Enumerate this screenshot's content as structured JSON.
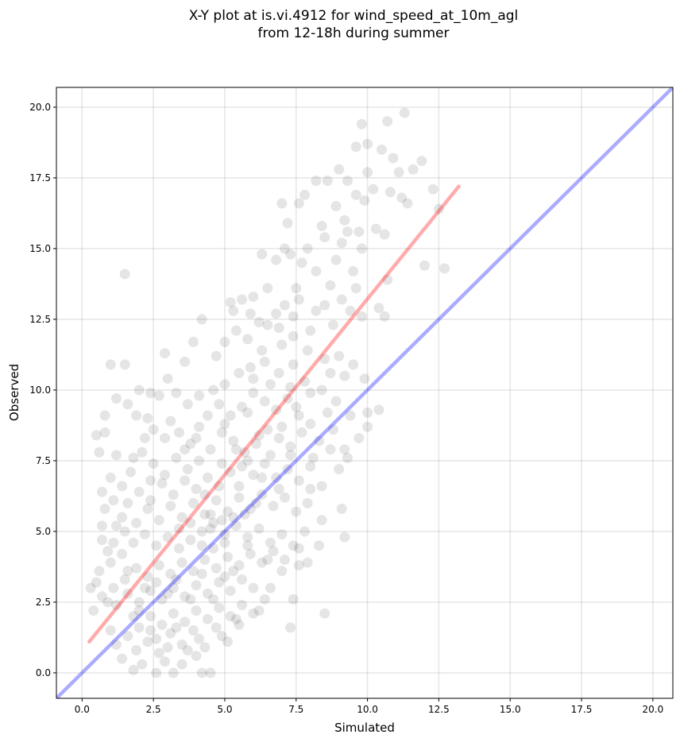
{
  "chart_data": {
    "type": "scatter",
    "title": "X-Y plot at is.vi.4912 for wind_speed_at_10m_agl",
    "subtitle": "from 12-18h during summer",
    "xlabel": "Simulated",
    "ylabel": "Observed",
    "xlim": [
      -0.9,
      20.7
    ],
    "ylim": [
      -0.9,
      20.7
    ],
    "grid": true,
    "xticks": [
      "0.0",
      "2.5",
      "5.0",
      "7.5",
      "10.0",
      "12.5",
      "15.0",
      "17.5",
      "20.0"
    ],
    "yticks": [
      "0.0",
      "2.5",
      "5.0",
      "7.5",
      "10.0",
      "12.5",
      "15.0",
      "17.5",
      "20.0"
    ],
    "tick_values": [
      0,
      2.5,
      5,
      7.5,
      10,
      12.5,
      15,
      17.5,
      20
    ],
    "point_color": "#000000",
    "point_alpha": 0.1,
    "lines": [
      {
        "kind": "regression",
        "color": "#ff0000",
        "alpha": 0.33,
        "x": [
          0.25,
          13.2
        ],
        "y": [
          1.1,
          17.2
        ]
      },
      {
        "kind": "one-to-one",
        "color": "#0000ff",
        "alpha": 0.33,
        "x": [
          -0.9,
          20.7
        ],
        "y": [
          -0.9,
          20.7
        ]
      }
    ],
    "points": [
      [
        1.5,
        14.1
      ],
      [
        2.4,
        9.9
      ],
      [
        1.0,
        10.9
      ],
      [
        1.5,
        10.9
      ],
      [
        0.8,
        9.1
      ],
      [
        1.2,
        9.7
      ],
      [
        1.6,
        9.5
      ],
      [
        2.0,
        10.0
      ],
      [
        0.5,
        8.4
      ],
      [
        0.8,
        8.5
      ],
      [
        0.6,
        7.8
      ],
      [
        0.7,
        6.4
      ],
      [
        1.2,
        7.7
      ],
      [
        1.8,
        7.6
      ],
      [
        0.3,
        3.0
      ],
      [
        0.4,
        2.2
      ],
      [
        0.5,
        3.2
      ],
      [
        0.9,
        4.3
      ],
      [
        0.7,
        5.2
      ],
      [
        1.1,
        6.1
      ],
      [
        1.4,
        5.5
      ],
      [
        1.6,
        3.6
      ],
      [
        2.0,
        2.2
      ],
      [
        2.6,
        0.0
      ],
      [
        3.2,
        0.0
      ],
      [
        4.2,
        0.0
      ],
      [
        4.5,
        0.0
      ],
      [
        3.0,
        0.9
      ],
      [
        3.7,
        0.8
      ],
      [
        2.4,
        1.5
      ],
      [
        3.3,
        1.6
      ],
      [
        4.1,
        1.2
      ],
      [
        4.9,
        1.3
      ],
      [
        5.4,
        1.9
      ],
      [
        6.2,
        2.2
      ],
      [
        7.3,
        1.6
      ],
      [
        7.4,
        2.6
      ],
      [
        8.5,
        2.1
      ],
      [
        6.6,
        3.0
      ],
      [
        7.0,
        3.6
      ],
      [
        7.6,
        3.8
      ],
      [
        7.9,
        3.9
      ],
      [
        8.3,
        4.5
      ],
      [
        7.8,
        5.0
      ],
      [
        9.2,
        4.8
      ],
      [
        9.1,
        5.8
      ],
      [
        8.4,
        5.4
      ],
      [
        8.0,
        6.5
      ],
      [
        8.4,
        6.6
      ],
      [
        9.0,
        7.2
      ],
      [
        9.3,
        7.6
      ],
      [
        9.7,
        8.3
      ],
      [
        10.0,
        8.7
      ],
      [
        10.4,
        9.3
      ],
      [
        9.2,
        7.9
      ],
      [
        8.8,
        8.6
      ],
      [
        12.7,
        14.3
      ],
      [
        10.7,
        13.9
      ],
      [
        11.2,
        16.8
      ],
      [
        11.6,
        17.8
      ],
      [
        11.3,
        19.8
      ],
      [
        10.7,
        19.5
      ],
      [
        10.0,
        18.7
      ],
      [
        10.5,
        18.5
      ],
      [
        9.8,
        19.4
      ],
      [
        9.6,
        18.6
      ],
      [
        12.0,
        14.4
      ],
      [
        12.3,
        17.1
      ],
      [
        12.5,
        16.4
      ],
      [
        11.4,
        16.6
      ],
      [
        10.8,
        17.0
      ],
      [
        11.9,
        18.1
      ],
      [
        10.6,
        15.5
      ],
      [
        10.3,
        15.7
      ],
      [
        9.7,
        15.6
      ],
      [
        9.1,
        15.2
      ],
      [
        8.5,
        15.4
      ],
      [
        7.9,
        15.0
      ],
      [
        7.3,
        14.8
      ],
      [
        6.8,
        14.6
      ],
      [
        6.3,
        14.8
      ],
      [
        7.0,
        16.6
      ],
      [
        7.2,
        15.9
      ],
      [
        7.6,
        16.6
      ],
      [
        7.8,
        16.9
      ],
      [
        8.2,
        17.4
      ],
      [
        8.6,
        17.4
      ],
      [
        8.9,
        16.5
      ],
      [
        9.2,
        16.0
      ],
      [
        9.6,
        16.9
      ],
      [
        9.0,
        17.8
      ],
      [
        9.3,
        17.4
      ],
      [
        9.9,
        16.7
      ],
      [
        10.2,
        17.1
      ],
      [
        10.0,
        17.7
      ],
      [
        10.9,
        18.2
      ],
      [
        11.1,
        17.7
      ],
      [
        9.5,
        14.2
      ],
      [
        9.4,
        12.8
      ],
      [
        10.4,
        12.9
      ],
      [
        10.6,
        12.6
      ],
      [
        9.8,
        12.6
      ],
      [
        8.8,
        12.3
      ],
      [
        8.2,
        12.8
      ],
      [
        7.6,
        13.2
      ],
      [
        7.1,
        13.0
      ],
      [
        6.5,
        13.6
      ],
      [
        6.0,
        13.3
      ],
      [
        5.6,
        13.2
      ],
      [
        5.2,
        13.1
      ],
      [
        5.4,
        12.1
      ],
      [
        5.8,
        11.8
      ],
      [
        6.3,
        11.4
      ],
      [
        6.9,
        12.2
      ],
      [
        7.4,
        11.9
      ],
      [
        7.9,
        11.4
      ],
      [
        8.5,
        11.1
      ],
      [
        9.0,
        11.2
      ],
      [
        9.5,
        10.9
      ],
      [
        9.9,
        10.4
      ],
      [
        10.0,
        9.2
      ],
      [
        9.4,
        9.1
      ],
      [
        8.9,
        9.6
      ],
      [
        8.4,
        10.0
      ],
      [
        7.8,
        10.3
      ],
      [
        7.3,
        10.1
      ],
      [
        6.9,
        10.6
      ],
      [
        6.4,
        11.0
      ],
      [
        5.9,
        10.8
      ],
      [
        5.5,
        10.6
      ],
      [
        5.0,
        10.2
      ],
      [
        4.6,
        10.0
      ],
      [
        4.1,
        9.8
      ],
      [
        3.7,
        9.5
      ],
      [
        3.3,
        9.9
      ],
      [
        3.0,
        10.4
      ],
      [
        2.9,
        11.3
      ],
      [
        3.6,
        11.0
      ],
      [
        3.9,
        11.7
      ],
      [
        4.2,
        12.5
      ],
      [
        4.7,
        11.2
      ],
      [
        5.0,
        11.7
      ],
      [
        5.3,
        12.8
      ],
      [
        5.9,
        12.7
      ],
      [
        6.5,
        12.3
      ],
      [
        1.9,
        9.1
      ],
      [
        2.3,
        9.0
      ],
      [
        2.7,
        9.8
      ],
      [
        2.2,
        8.3
      ],
      [
        2.5,
        8.6
      ],
      [
        2.9,
        8.3
      ],
      [
        3.1,
        8.9
      ],
      [
        3.4,
        8.5
      ],
      [
        3.8,
        8.1
      ],
      [
        4.1,
        8.7
      ],
      [
        4.4,
        9.1
      ],
      [
        4.8,
        9.5
      ],
      [
        5.2,
        9.1
      ],
      [
        5.6,
        9.4
      ],
      [
        6.0,
        9.9
      ],
      [
        6.4,
        9.6
      ],
      [
        6.8,
        9.3
      ],
      [
        7.2,
        9.7
      ],
      [
        7.6,
        9.1
      ],
      [
        8.0,
        8.8
      ],
      [
        8.3,
        8.2
      ],
      [
        7.7,
        8.5
      ],
      [
        7.3,
        8.0
      ],
      [
        6.9,
        8.3
      ],
      [
        6.5,
        8.6
      ],
      [
        6.1,
        8.1
      ],
      [
        5.7,
        7.8
      ],
      [
        5.3,
        8.2
      ],
      [
        4.9,
        8.5
      ],
      [
        4.5,
        7.9
      ],
      [
        4.1,
        7.5
      ],
      [
        3.7,
        7.2
      ],
      [
        3.3,
        7.6
      ],
      [
        2.9,
        7.0
      ],
      [
        2.5,
        7.4
      ],
      [
        2.1,
        7.8
      ],
      [
        1.7,
        7.1
      ],
      [
        1.4,
        6.6
      ],
      [
        1.0,
        6.9
      ],
      [
        0.8,
        5.8
      ],
      [
        1.2,
        5.2
      ],
      [
        1.6,
        6.0
      ],
      [
        2.0,
        6.4
      ],
      [
        2.4,
        6.1
      ],
      [
        2.8,
        6.7
      ],
      [
        3.2,
        6.3
      ],
      [
        3.6,
        6.8
      ],
      [
        4.0,
        6.5
      ],
      [
        4.4,
        6.9
      ],
      [
        4.8,
        6.6
      ],
      [
        5.2,
        7.1
      ],
      [
        5.6,
        7.3
      ],
      [
        6.0,
        7.0
      ],
      [
        6.4,
        7.4
      ],
      [
        6.8,
        6.9
      ],
      [
        7.2,
        7.2
      ],
      [
        7.6,
        6.8
      ],
      [
        8.0,
        7.3
      ],
      [
        7.9,
        6.0
      ],
      [
        7.5,
        5.7
      ],
      [
        7.1,
        6.2
      ],
      [
        6.7,
        5.9
      ],
      [
        6.3,
        6.3
      ],
      [
        5.9,
        5.8
      ],
      [
        5.5,
        6.2
      ],
      [
        5.1,
        5.7
      ],
      [
        4.7,
        6.1
      ],
      [
        4.3,
        5.6
      ],
      [
        3.9,
        6.0
      ],
      [
        3.5,
        5.5
      ],
      [
        3.1,
        5.9
      ],
      [
        2.7,
        5.4
      ],
      [
        2.3,
        5.8
      ],
      [
        1.9,
        5.3
      ],
      [
        1.5,
        5.0
      ],
      [
        1.1,
        4.6
      ],
      [
        0.7,
        4.7
      ],
      [
        0.6,
        3.6
      ],
      [
        1.0,
        3.9
      ],
      [
        1.4,
        4.2
      ],
      [
        1.8,
        4.6
      ],
      [
        2.2,
        4.9
      ],
      [
        2.6,
        4.5
      ],
      [
        3.0,
        4.8
      ],
      [
        3.4,
        5.1
      ],
      [
        3.8,
        4.7
      ],
      [
        4.2,
        5.0
      ],
      [
        4.6,
        5.3
      ],
      [
        5.0,
        4.9
      ],
      [
        5.4,
        5.2
      ],
      [
        5.8,
        4.8
      ],
      [
        6.2,
        5.1
      ],
      [
        6.6,
        4.6
      ],
      [
        7.0,
        4.9
      ],
      [
        7.4,
        4.5
      ],
      [
        7.1,
        4.0
      ],
      [
        6.7,
        4.3
      ],
      [
        6.3,
        3.9
      ],
      [
        5.9,
        4.2
      ],
      [
        5.5,
        3.8
      ],
      [
        5.1,
        4.1
      ],
      [
        4.7,
        3.7
      ],
      [
        4.3,
        4.0
      ],
      [
        3.9,
        3.6
      ],
      [
        3.5,
        3.9
      ],
      [
        3.1,
        3.5
      ],
      [
        2.7,
        3.8
      ],
      [
        2.3,
        3.4
      ],
      [
        1.9,
        3.7
      ],
      [
        1.5,
        3.3
      ],
      [
        1.1,
        3.0
      ],
      [
        0.7,
        2.7
      ],
      [
        1.2,
        2.4
      ],
      [
        1.6,
        2.8
      ],
      [
        2.0,
        2.5
      ],
      [
        2.4,
        2.9
      ],
      [
        2.8,
        2.6
      ],
      [
        3.2,
        3.0
      ],
      [
        3.6,
        2.7
      ],
      [
        4.0,
        3.1
      ],
      [
        4.4,
        2.8
      ],
      [
        4.8,
        3.2
      ],
      [
        5.2,
        2.9
      ],
      [
        5.6,
        3.3
      ],
      [
        6.0,
        3.0
      ],
      [
        6.4,
        2.6
      ],
      [
        6.0,
        2.1
      ],
      [
        5.6,
        2.4
      ],
      [
        5.2,
        2.0
      ],
      [
        4.8,
        2.3
      ],
      [
        4.4,
        1.9
      ],
      [
        4.0,
        2.2
      ],
      [
        3.6,
        1.8
      ],
      [
        3.2,
        2.1
      ],
      [
        2.8,
        1.7
      ],
      [
        2.4,
        2.0
      ],
      [
        2.0,
        1.6
      ],
      [
        1.6,
        1.3
      ],
      [
        1.2,
        1.0
      ],
      [
        1.4,
        0.5
      ],
      [
        1.9,
        0.8
      ],
      [
        2.3,
        1.1
      ],
      [
        2.7,
        0.7
      ],
      [
        3.1,
        1.4
      ],
      [
        3.5,
        1.0
      ],
      [
        3.9,
        1.5
      ],
      [
        4.3,
        0.9
      ],
      [
        4.7,
        1.6
      ],
      [
        5.1,
        1.1
      ],
      [
        5.5,
        1.7
      ],
      [
        2.1,
        0.3
      ],
      [
        2.9,
        0.4
      ],
      [
        3.5,
        0.3
      ],
      [
        4.0,
        0.6
      ],
      [
        1.8,
        0.1
      ],
      [
        4.5,
        5.6
      ],
      [
        4.5,
        5.1
      ],
      [
        4.9,
        5.4
      ],
      [
        5.3,
        5.5
      ],
      [
        4.6,
        4.4
      ],
      [
        5.0,
        4.6
      ],
      [
        4.2,
        4.5
      ],
      [
        5.7,
        5.6
      ],
      [
        6.1,
        6.0
      ],
      [
        5.5,
        6.6
      ],
      [
        4.3,
        6.3
      ],
      [
        3.8,
        5.3
      ],
      [
        3.4,
        4.4
      ],
      [
        2.6,
        3.2
      ],
      [
        3.0,
        2.8
      ],
      [
        5.8,
        7.5
      ],
      [
        5.4,
        7.9
      ],
      [
        6.2,
        8.4
      ],
      [
        6.6,
        7.7
      ],
      [
        7.0,
        8.7
      ],
      [
        4.9,
        7.4
      ],
      [
        3.6,
        7.9
      ],
      [
        4.0,
        8.3
      ],
      [
        2.4,
        6.8
      ],
      [
        5.0,
        8.8
      ],
      [
        5.8,
        9.2
      ],
      [
        6.6,
        10.2
      ],
      [
        7.4,
        10.9
      ],
      [
        7.0,
        11.6
      ],
      [
        6.0,
        10.4
      ],
      [
        6.8,
        12.7
      ],
      [
        7.4,
        12.6
      ],
      [
        8.0,
        12.1
      ],
      [
        8.7,
        13.7
      ],
      [
        8.2,
        14.2
      ],
      [
        7.7,
        14.5
      ],
      [
        9.1,
        13.2
      ],
      [
        8.5,
        13.0
      ],
      [
        9.6,
        13.6
      ],
      [
        8.9,
        14.6
      ],
      [
        7.5,
        13.6
      ],
      [
        6.2,
        12.4
      ],
      [
        9.3,
        15.6
      ],
      [
        8.4,
        15.8
      ],
      [
        9.8,
        15.0
      ],
      [
        7.1,
        15.0
      ],
      [
        8.0,
        9.9
      ],
      [
        8.7,
        10.6
      ],
      [
        9.2,
        10.5
      ],
      [
        8.6,
        9.2
      ],
      [
        7.5,
        9.4
      ],
      [
        8.1,
        7.6
      ],
      [
        8.7,
        7.9
      ],
      [
        7.3,
        7.7
      ],
      [
        6.3,
        6.9
      ],
      [
        6.9,
        6.5
      ],
      [
        4.6,
        2.6
      ],
      [
        5.3,
        3.6
      ],
      [
        6.5,
        4.0
      ],
      [
        7.6,
        4.4
      ],
      [
        3.3,
        3.3
      ],
      [
        2.2,
        3.0
      ],
      [
        1.8,
        2.0
      ],
      [
        1.0,
        1.5
      ],
      [
        0.9,
        2.5
      ],
      [
        2.6,
        1.2
      ],
      [
        3.8,
        2.6
      ],
      [
        4.2,
        3.5
      ],
      [
        5.0,
        3.4
      ],
      [
        5.8,
        4.5
      ]
    ]
  }
}
